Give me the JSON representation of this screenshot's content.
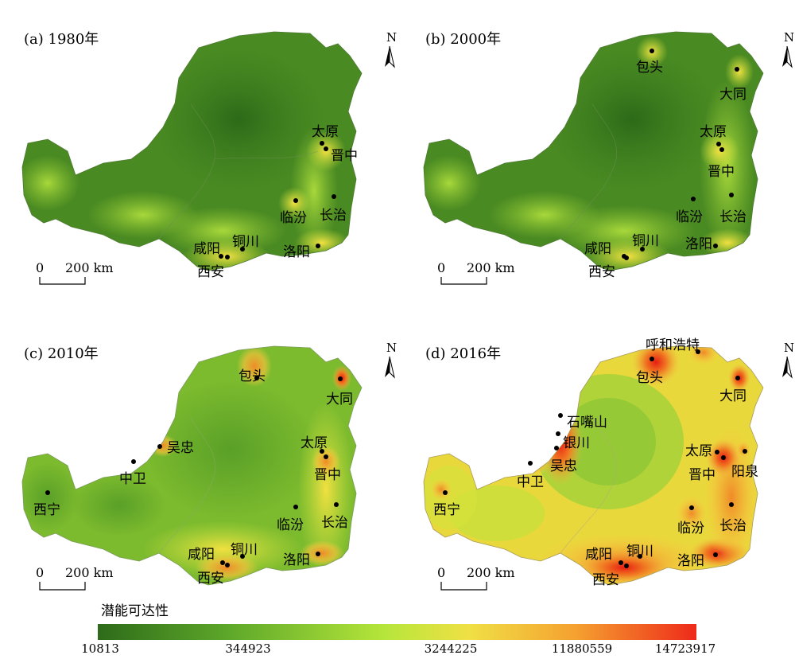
{
  "legend": {
    "title": "潜能可达性",
    "ticks": [
      "10813",
      "344923",
      "3244225",
      "11880559",
      "14723917"
    ],
    "colors": [
      "#2e6b1a",
      "#5ea82a",
      "#b6e63a",
      "#f0e045",
      "#f5a030",
      "#ee2a1a"
    ]
  },
  "scale": {
    "zero": "0",
    "label": "200 km"
  },
  "north": "N",
  "panels": [
    {
      "title": "(a) 1980年",
      "base": "#4a8a22",
      "cities": [
        {
          "name": "太原"
        },
        {
          "name": "晋中"
        },
        {
          "name": "临汾"
        },
        {
          "name": "长治"
        },
        {
          "name": "咸阳"
        },
        {
          "name": "铜川"
        },
        {
          "name": "洛阳"
        },
        {
          "name": "西安"
        }
      ]
    },
    {
      "title": "(b) 2000年",
      "base": "#4a8a22",
      "cities": [
        {
          "name": "包头"
        },
        {
          "name": "大同"
        },
        {
          "name": "太原"
        },
        {
          "name": "晋中"
        },
        {
          "name": "临汾"
        },
        {
          "name": "长治"
        },
        {
          "name": "咸阳"
        },
        {
          "name": "铜川"
        },
        {
          "name": "洛阳"
        },
        {
          "name": "西安"
        }
      ]
    },
    {
      "title": "(c) 2010年",
      "base": "#7dbb2e",
      "cities": [
        {
          "name": "包头"
        },
        {
          "name": "大同"
        },
        {
          "name": "吴忠"
        },
        {
          "name": "中卫"
        },
        {
          "name": "太原"
        },
        {
          "name": "晋中"
        },
        {
          "name": "西宁"
        },
        {
          "name": "临汾"
        },
        {
          "name": "长治"
        },
        {
          "name": "咸阳"
        },
        {
          "name": "铜川"
        },
        {
          "name": "洛阳"
        },
        {
          "name": "西安"
        }
      ]
    },
    {
      "title": "(d) 2016年",
      "base": "#c6e03a",
      "cities": [
        {
          "name": "呼和浩特"
        },
        {
          "name": "包头"
        },
        {
          "name": "大同"
        },
        {
          "name": "石嘴山"
        },
        {
          "name": "银川"
        },
        {
          "name": "吴忠"
        },
        {
          "name": "中卫"
        },
        {
          "name": "太原"
        },
        {
          "name": "晋中"
        },
        {
          "name": "阳泉"
        },
        {
          "name": "西宁"
        },
        {
          "name": "临汾"
        },
        {
          "name": "长治"
        },
        {
          "name": "咸阳"
        },
        {
          "name": "铜川"
        },
        {
          "name": "洛阳"
        },
        {
          "name": "西安"
        }
      ]
    }
  ]
}
